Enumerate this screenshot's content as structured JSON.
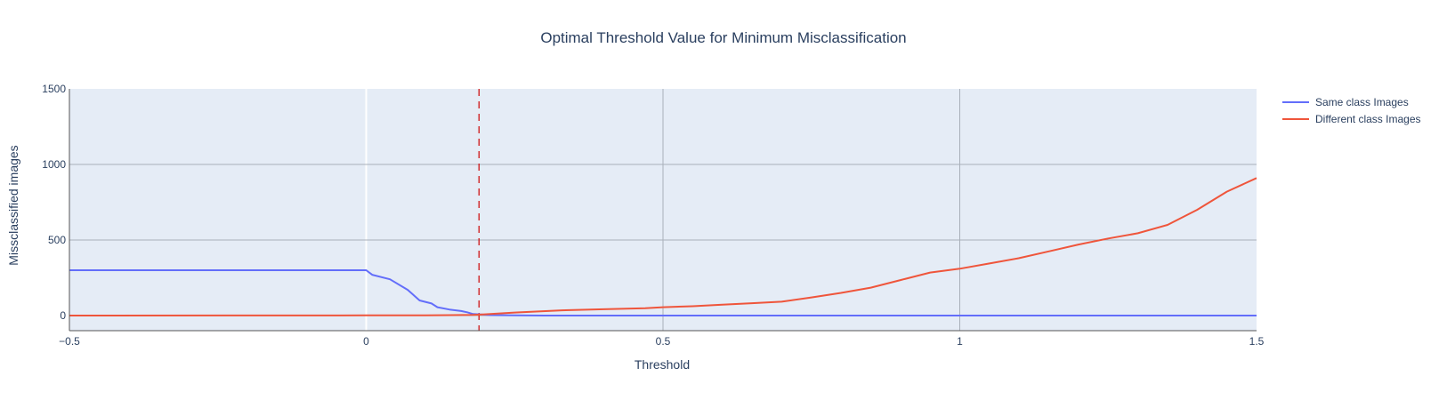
{
  "colors": {
    "plot_bg": "#e5ecf6",
    "grid": "#a9b0ba",
    "zero_line": "#ffffff",
    "axis_line": "#555555",
    "same_class": "#636efa",
    "different_class": "#ef553b",
    "threshold_line": "#cc0000",
    "text": "#2a3f5f"
  },
  "chart_data": {
    "type": "line",
    "title": "Optimal Threshold Value for Minimum Misclassification",
    "xlabel": "Threshold",
    "ylabel": "Missclassified images",
    "xlim": [
      -0.5,
      1.5
    ],
    "ylim": [
      -100,
      1500
    ],
    "x_ticks": [
      -0.5,
      0,
      0.5,
      1,
      1.5
    ],
    "x_tick_labels": [
      "−0.5",
      "0",
      "0.5",
      "1",
      "1.5"
    ],
    "y_ticks": [
      0,
      500,
      1000,
      1500
    ],
    "y_tick_labels": [
      "0",
      "500",
      "1000",
      "1500"
    ],
    "grid": true,
    "legend_position": "top-right",
    "threshold_marker": {
      "x": 0.19,
      "style": "dashed"
    },
    "series": [
      {
        "name": "Same class Images",
        "x": [
          -0.5,
          0.0,
          0.01,
          0.04,
          0.07,
          0.09,
          0.11,
          0.12,
          0.14,
          0.16,
          0.17,
          0.18,
          0.19,
          0.21,
          0.25,
          0.3,
          0.5,
          1.0,
          1.5
        ],
        "y": [
          300,
          300,
          270,
          240,
          170,
          100,
          80,
          55,
          40,
          30,
          22,
          10,
          8,
          3,
          1,
          0,
          0,
          0,
          0
        ]
      },
      {
        "name": "Different class Images",
        "x": [
          -0.5,
          0.0,
          0.1,
          0.18,
          0.19,
          0.25,
          0.33,
          0.4,
          0.47,
          0.5,
          0.55,
          0.6,
          0.65,
          0.7,
          0.75,
          0.8,
          0.85,
          0.9,
          0.95,
          1.0,
          1.05,
          1.1,
          1.15,
          1.2,
          1.25,
          1.3,
          1.35,
          1.4,
          1.45,
          1.5
        ],
        "y": [
          0,
          1,
          2,
          4,
          6,
          20,
          35,
          42,
          48,
          55,
          62,
          72,
          82,
          92,
          120,
          150,
          185,
          235,
          285,
          310,
          345,
          380,
          425,
          470,
          510,
          545,
          600,
          700,
          820,
          910
        ]
      }
    ]
  }
}
